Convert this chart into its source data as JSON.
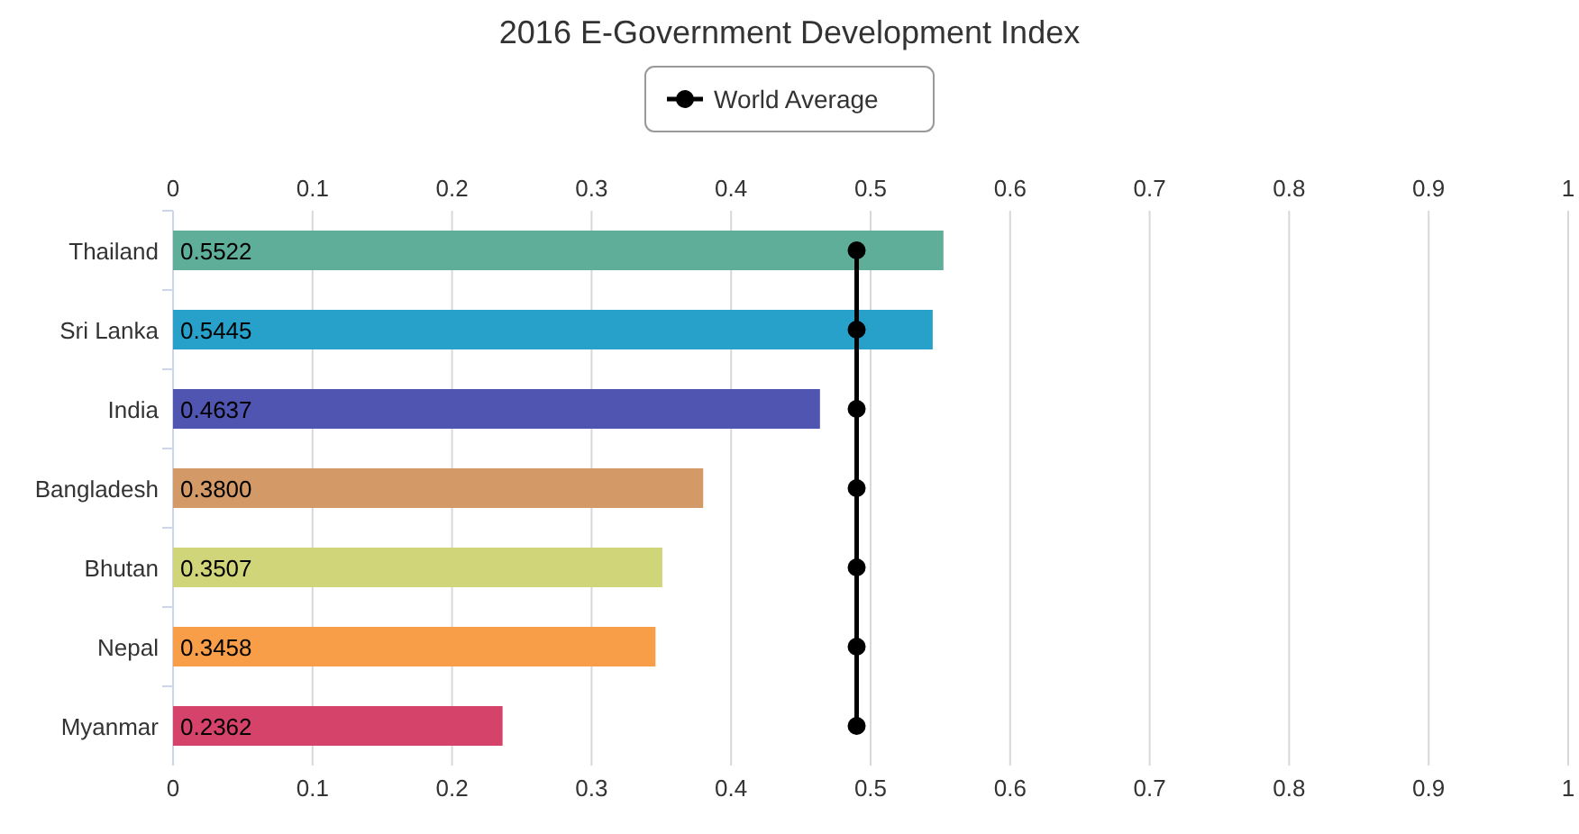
{
  "chart_data": {
    "type": "bar",
    "orientation": "horizontal",
    "title": "2016 E-Government Development Index",
    "categories": [
      "Thailand",
      "Sri Lanka",
      "India",
      "Bangladesh",
      "Bhutan",
      "Nepal",
      "Myanmar"
    ],
    "series": [
      {
        "values": [
          0.5522,
          0.5445,
          0.4637,
          0.38,
          0.3507,
          0.3458,
          0.2362
        ],
        "colors": [
          "#5fae99",
          "#27a1c9",
          "#4f55b0",
          "#d39a68",
          "#d1d57a",
          "#f89d48",
          "#d6436a"
        ],
        "value_labels": [
          "0.5522",
          "0.5445",
          "0.4637",
          "0.3800",
          "0.3507",
          "0.3458",
          "0.2362"
        ]
      },
      {
        "type": "line",
        "name": "World Average",
        "color": "#000000",
        "values": [
          0.49,
          0.49,
          0.49,
          0.49,
          0.49,
          0.49,
          0.49
        ],
        "marker": "circle"
      }
    ],
    "xlim": [
      0,
      1
    ],
    "xticks": [
      0,
      0.1,
      0.2,
      0.3,
      0.4,
      0.5,
      0.6,
      0.7,
      0.8,
      0.9,
      1
    ],
    "x2lim": [
      0,
      1
    ],
    "x2ticks": [
      0,
      0.1,
      0.2,
      0.3,
      0.4,
      0.5,
      0.6,
      0.7,
      0.8,
      0.9,
      1
    ],
    "grid": "x",
    "legend": "top"
  }
}
